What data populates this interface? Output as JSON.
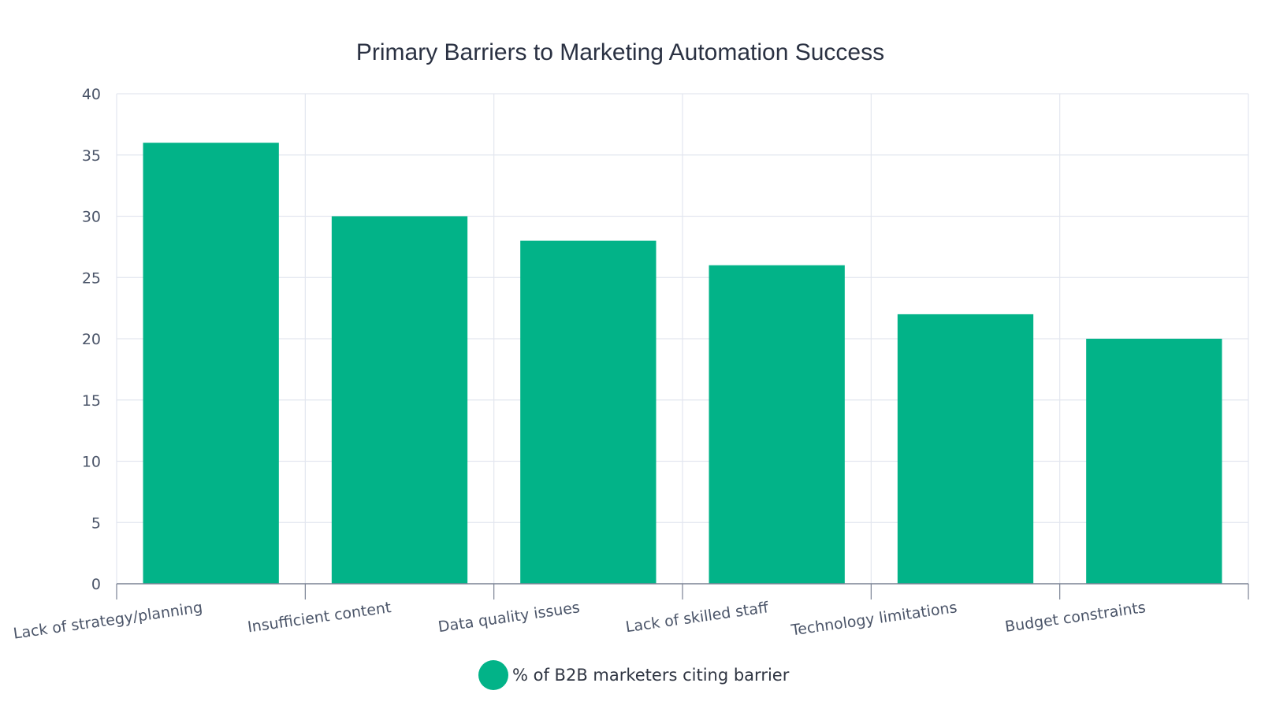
{
  "chart_data": {
    "type": "bar",
    "title": "Primary Barriers to Marketing Automation Success",
    "xlabel": "",
    "ylabel": "",
    "categories": [
      "Lack of strategy/planning",
      "Insufficient content",
      "Data quality issues",
      "Lack of skilled staff",
      "Technology limitations",
      "Budget constraints"
    ],
    "series": [
      {
        "name": "% of B2B marketers citing barrier",
        "values": [
          36,
          30,
          28,
          26,
          22,
          20
        ],
        "color": "#02b388"
      }
    ],
    "ylim": [
      0,
      40
    ],
    "yticks": [
      0,
      5,
      10,
      15,
      20,
      25,
      30,
      35,
      40
    ],
    "grid": true,
    "legend_position": "bottom-center",
    "colors": {
      "grid": "#e3e6ef",
      "axis": "#7a8294",
      "text": "#4a5468",
      "title": "#2a3142"
    }
  }
}
